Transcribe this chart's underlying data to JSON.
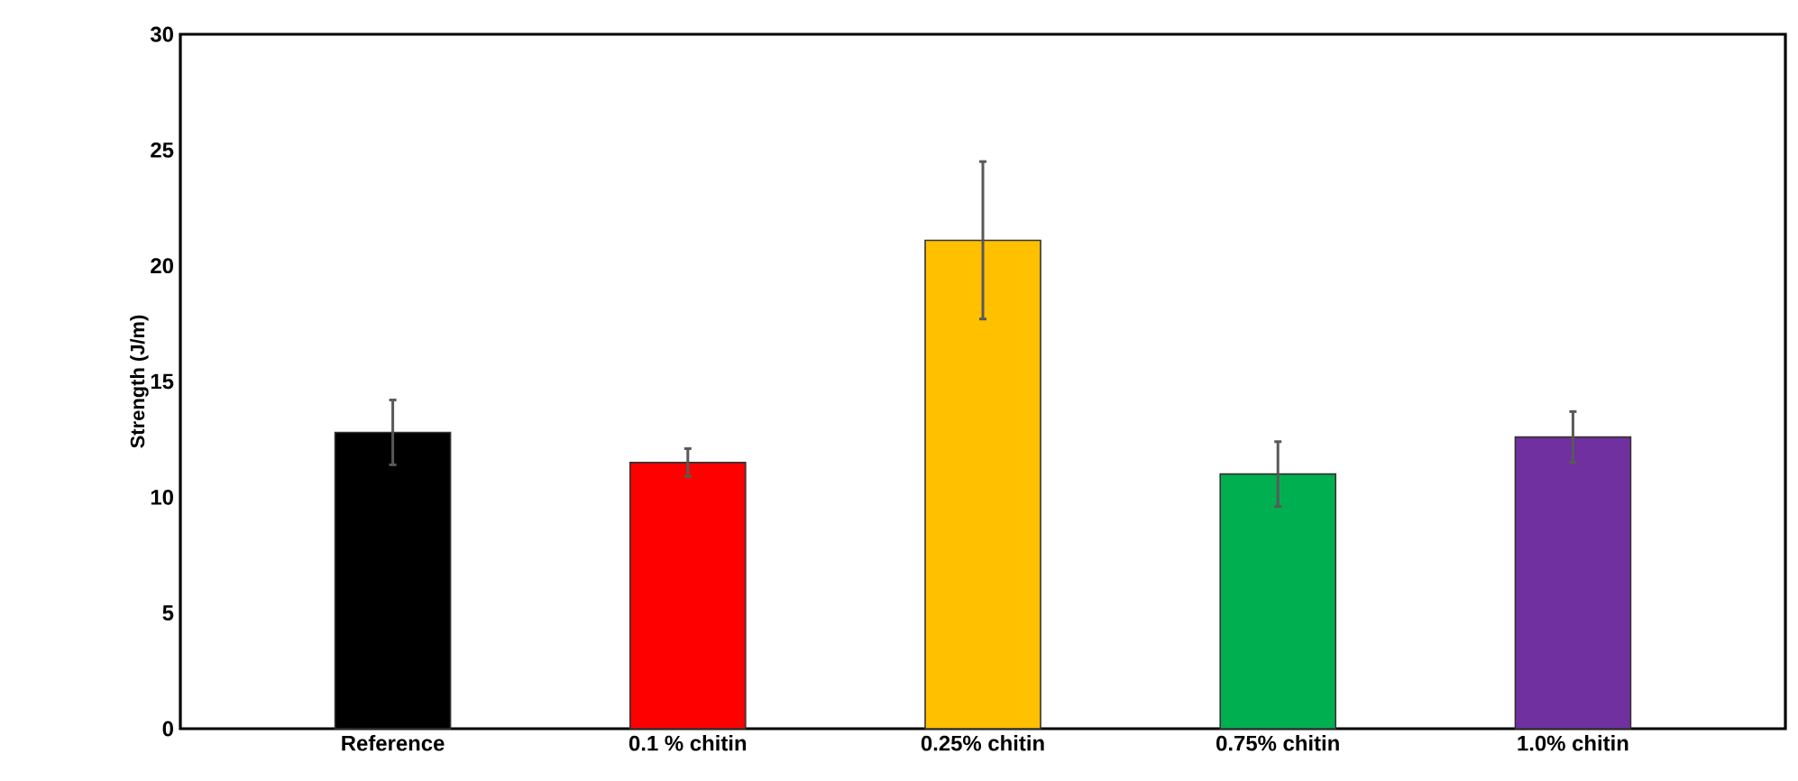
{
  "chart_data": {
    "type": "bar",
    "ylabel": "Strength (J/m)",
    "categories": [
      "Reference",
      "0.1 % chitin",
      "0.25% chitin",
      "0.75% chitin",
      "1.0% chitin"
    ],
    "values": [
      12.8,
      11.5,
      21.1,
      11.0,
      12.6
    ],
    "errors": [
      1.4,
      0.6,
      3.4,
      1.4,
      1.1
    ],
    "colors": [
      "#000000",
      "#ff0000",
      "#ffc000",
      "#00b050",
      "#7030a0"
    ],
    "ylim": [
      0,
      30
    ],
    "yticks": [
      0,
      5,
      10,
      15,
      20,
      25,
      30
    ]
  }
}
